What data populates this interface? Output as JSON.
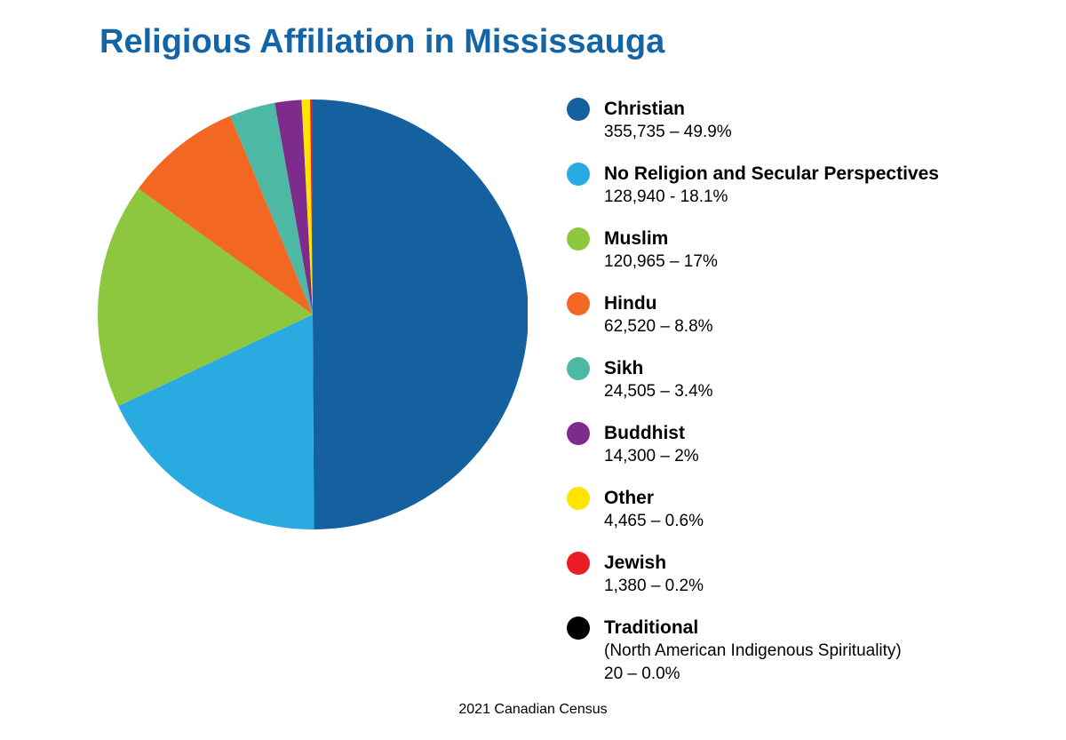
{
  "title": "Religious Affiliation in Mississauga",
  "footer": "2021 Canadian Census",
  "colors": {
    "title_accent": "#1464a8",
    "background": "#ffffff"
  },
  "chart_data": {
    "type": "pie",
    "title": "Religious Affiliation in Mississauga",
    "source": "2021 Canadian Census",
    "start_angle_deg": -90,
    "direction": "clockwise",
    "legend_position": "right",
    "slices": [
      {
        "label": "Christian",
        "value": 355735,
        "percent": 49.9,
        "color": "#15609e",
        "value_text": "355,735 – 49.9%"
      },
      {
        "label": "No Religion and Secular Perspectives",
        "value": 128940,
        "percent": 18.1,
        "color": "#29abe2",
        "value_text": "128,940 - 18.1%"
      },
      {
        "label": "Muslim",
        "value": 120965,
        "percent": 17,
        "color": "#8dc63f",
        "value_text": "120,965 – 17%"
      },
      {
        "label": "Hindu",
        "value": 62520,
        "percent": 8.8,
        "color": "#f26722",
        "value_text": "62,520 – 8.8%"
      },
      {
        "label": "Sikh",
        "value": 24505,
        "percent": 3.4,
        "color": "#4db8a4",
        "value_text": "24,505 – 3.4%"
      },
      {
        "label": "Buddhist",
        "value": 14300,
        "percent": 2,
        "color": "#7e2b8e",
        "value_text": "14,300 – 2%"
      },
      {
        "label": "Other",
        "value": 4465,
        "percent": 0.6,
        "color": "#ffe400",
        "value_text": "4,465 – 0.6%"
      },
      {
        "label": "Jewish",
        "value": 1380,
        "percent": 0.2,
        "color": "#ec1c24",
        "value_text": "1,380 – 0.2%"
      },
      {
        "label": "Traditional",
        "sublabel": "(North American Indigenous Spirituality)",
        "value": 20,
        "percent": 0.0,
        "color": "#000000",
        "value_text": "20 – 0.0%"
      }
    ]
  }
}
